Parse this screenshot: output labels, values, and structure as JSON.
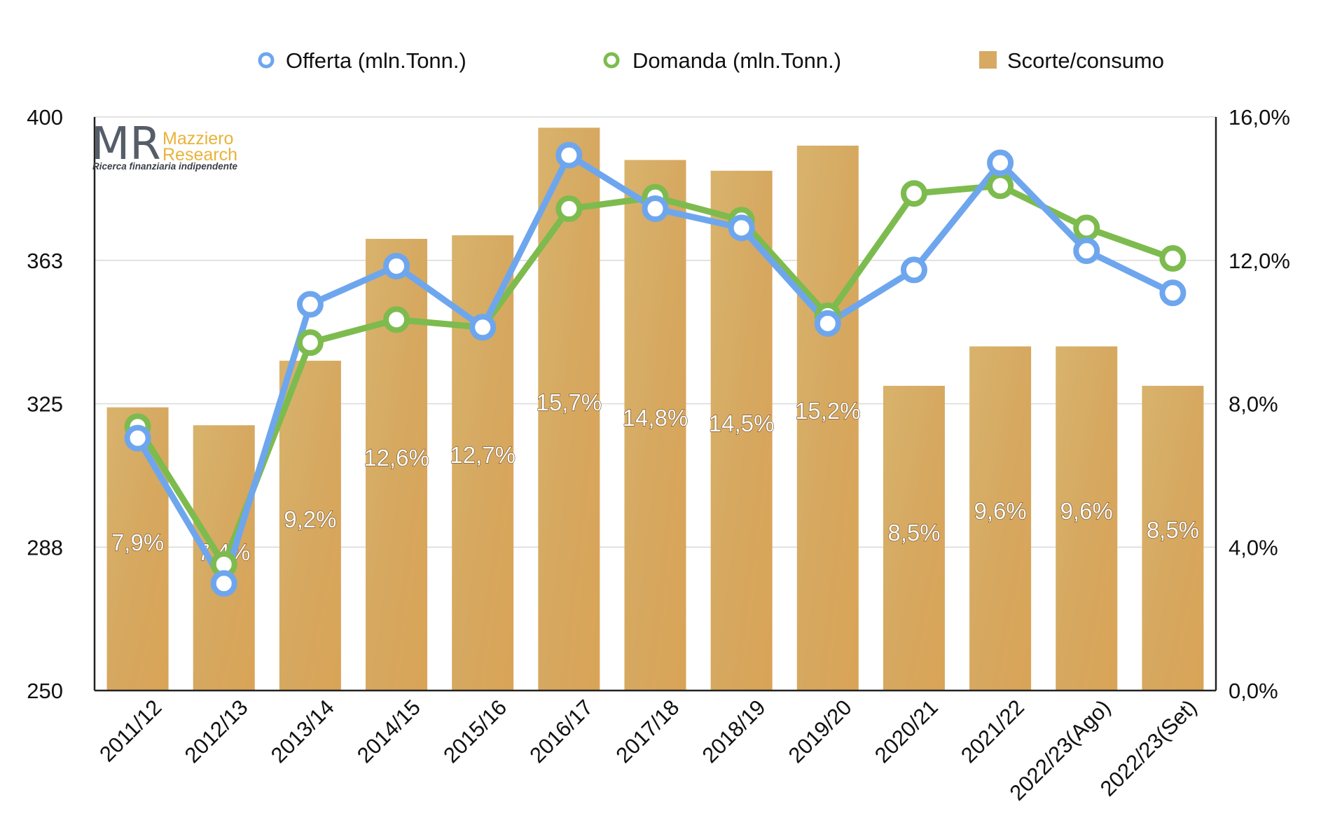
{
  "chart_data": {
    "type": "bar+line",
    "categories": [
      "2011/12",
      "2012/13",
      "2013/14",
      "2014/15",
      "2015/16",
      "2016/17",
      "2017/18",
      "2018/19",
      "2019/20",
      "2020/21",
      "2021/22",
      "2022/23(Ago)",
      "2022/23(Set)"
    ],
    "bars": {
      "name": "Scorte/consumo",
      "axis": "right",
      "values": [
        7.9,
        7.4,
        9.2,
        12.6,
        12.7,
        15.7,
        14.8,
        14.5,
        15.2,
        8.5,
        9.6,
        9.6,
        8.5
      ],
      "labels": [
        "7,9%",
        "7,4%",
        "9,2%",
        "12,6%",
        "12,7%",
        "15,7%",
        "14,8%",
        "14,5%",
        "15,2%",
        "8,5%",
        "9,6%",
        "9,6%",
        "8,5%"
      ]
    },
    "series": [
      {
        "name": "Offerta (mln.Tonn.)",
        "axis": "left",
        "color": "#6ea6ee",
        "values": [
          316,
          278,
          351,
          361,
          345,
          390,
          376,
          371,
          346,
          360,
          388,
          365,
          354
        ]
      },
      {
        "name": "Domanda (mln.Tonn.)",
        "axis": "left",
        "color": "#7dbb4e",
        "values": [
          319,
          283,
          341,
          347,
          345,
          376,
          379,
          373,
          348,
          380,
          382,
          371,
          363
        ]
      }
    ],
    "left_axis": {
      "min": 250,
      "max": 400,
      "ticks": [
        "250",
        "288",
        "325",
        "363",
        "400"
      ]
    },
    "right_axis": {
      "min": 0,
      "max": 16,
      "ticks": [
        "0,0%",
        "4,0%",
        "8,0%",
        "12,0%",
        "16,0%"
      ]
    },
    "legend_placement": "top",
    "grid": "horizontal",
    "bar_color": "#d9ab5e"
  },
  "logo": {
    "mark": "MR",
    "line1": "Mazziero",
    "line2": "Research",
    "tagline": "Ricerca finanziaria indipendente"
  }
}
